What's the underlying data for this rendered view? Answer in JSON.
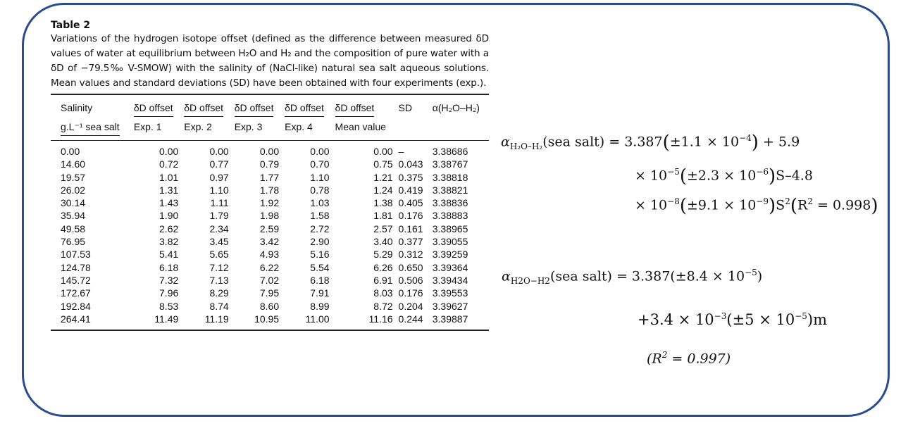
{
  "table": {
    "label": "Table 2",
    "caption": "Variations of the hydrogen isotope offset (defined as the difference between measured δD values of water at equilibrium between H₂O and H₂ and the composition of pure water with a δD of −79.5‰ V-SMOW) with the salinity of (NaCl-like) natural sea salt aqueous solutions. Mean values and standard deviations (SD) have been obtained with four experiments (exp.).",
    "headers_top": [
      "Salinity",
      "δD offset",
      "δD offset",
      "δD offset",
      "δD offset",
      "δD offset",
      "SD",
      "α(H₂O–H₂)"
    ],
    "headers_sub": [
      "g.L⁻¹ sea salt",
      "Exp. 1",
      "Exp. 2",
      "Exp. 3",
      "Exp. 4",
      "Mean value",
      "",
      ""
    ],
    "rows": [
      [
        "0.00",
        "0.00",
        "0.00",
        "0.00",
        "0.00",
        "0.00",
        "–",
        "3.38686"
      ],
      [
        "14.60",
        "0.72",
        "0.77",
        "0.79",
        "0.70",
        "0.75",
        "0.043",
        "3.38767"
      ],
      [
        "19.57",
        "1.01",
        "0.97",
        "1.77",
        "1.10",
        "1.21",
        "0.375",
        "3.38818"
      ],
      [
        "26.02",
        "1.31",
        "1.10",
        "1.78",
        "0.78",
        "1.24",
        "0.419",
        "3.38821"
      ],
      [
        "30.14",
        "1.43",
        "1.11",
        "1.92",
        "1.03",
        "1.38",
        "0.405",
        "3.38836"
      ],
      [
        "35.94",
        "1.90",
        "1.79",
        "1.98",
        "1.58",
        "1.81",
        "0.176",
        "3.38883"
      ],
      [
        "49.58",
        "2.62",
        "2.34",
        "2.59",
        "2.72",
        "2.57",
        "0.161",
        "3.38965"
      ],
      [
        "76.95",
        "3.82",
        "3.45",
        "3.42",
        "2.90",
        "3.40",
        "0.377",
        "3.39055"
      ],
      [
        "107.53",
        "5.41",
        "5.65",
        "4.93",
        "5.16",
        "5.29",
        "0.312",
        "3.39259"
      ],
      [
        "124.78",
        "6.18",
        "7.12",
        "6.22",
        "5.54",
        "6.26",
        "0.650",
        "3.39364"
      ],
      [
        "145.72",
        "7.32",
        "7.13",
        "7.02",
        "6.18",
        "6.91",
        "0.506",
        "3.39434"
      ],
      [
        "172.67",
        "7.96",
        "8.29",
        "7.95",
        "7.91",
        "8.03",
        "0.176",
        "3.39553"
      ],
      [
        "192.84",
        "8.53",
        "8.74",
        "8.60",
        "8.99",
        "8.72",
        "0.204",
        "3.39627"
      ],
      [
        "264.41",
        "11.49",
        "11.19",
        "10.95",
        "11.00",
        "11.16",
        "0.244",
        "3.39887"
      ]
    ]
  },
  "equation1": {
    "lhs_symbol": "α",
    "lhs_sub": "H₂O–H₂",
    "lhs_arg": "(sea salt) = 3.387",
    "t1": "±1.1 × 10",
    "t1_exp": "−4",
    "t1_tail": "+ 5.9",
    "l2_a": "× 10",
    "l2_a_exp": "−5",
    "t2": "±2.3 × 10",
    "t2_exp": "−6",
    "l2_tail": "S–4.8",
    "l3_a": "× 10",
    "l3_a_exp": "−8",
    "t3": "±9.1 × 10",
    "t3_exp": "−9",
    "l3_s": "S",
    "l3_s_exp": "2",
    "r2_label": "R",
    "r2_exp": "2",
    "r2_value": " = 0.998"
  },
  "equation2": {
    "lhs_symbol": "α",
    "lhs_sub": "H2O−H2",
    "line1_rest": "(sea salt) = 3.387(±8.4 × 10",
    "line1_exp": "−5",
    "line1_close": ")",
    "line2_a": "+3.4 × 10",
    "line2_a_exp": "−3",
    "line2_b": "(±5 × 10",
    "line2_b_exp": "−5",
    "line2_c": ")m",
    "line3_open": "(R",
    "line3_exp": "2",
    "line3_rest": " = 0.997)"
  }
}
